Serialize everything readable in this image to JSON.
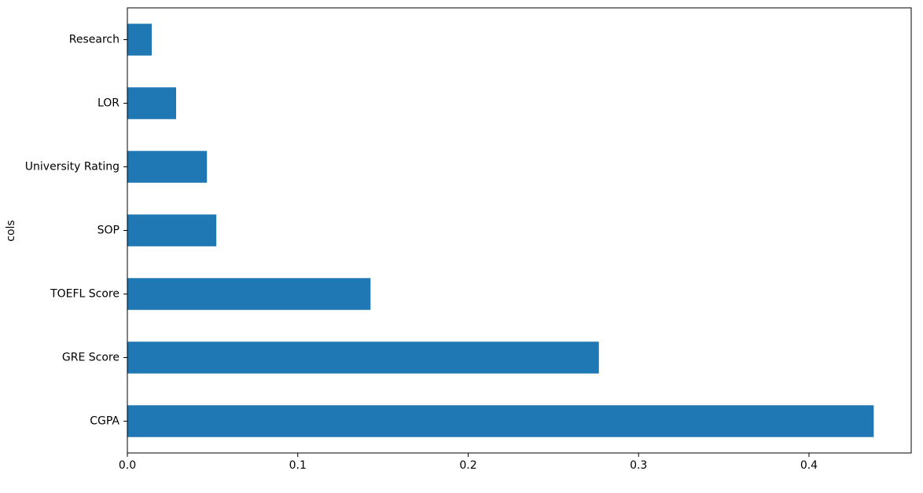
{
  "chart_data": {
    "type": "barh",
    "ylabel": "cols",
    "categories": [
      "CGPA",
      "GRE Score",
      "TOEFL Score",
      "SOP",
      "University Rating",
      "LOR",
      "Research"
    ],
    "values": [
      0.438,
      0.2767,
      0.1427,
      0.0522,
      0.0467,
      0.0286,
      0.0143
    ],
    "color": "#1f77b4",
    "xlim": [
      0,
      0.46
    ],
    "xticks": [
      {
        "value": 0,
        "label": "0.0"
      },
      0.1,
      0.2,
      0.3,
      0.4
    ],
    "grid": false
  }
}
